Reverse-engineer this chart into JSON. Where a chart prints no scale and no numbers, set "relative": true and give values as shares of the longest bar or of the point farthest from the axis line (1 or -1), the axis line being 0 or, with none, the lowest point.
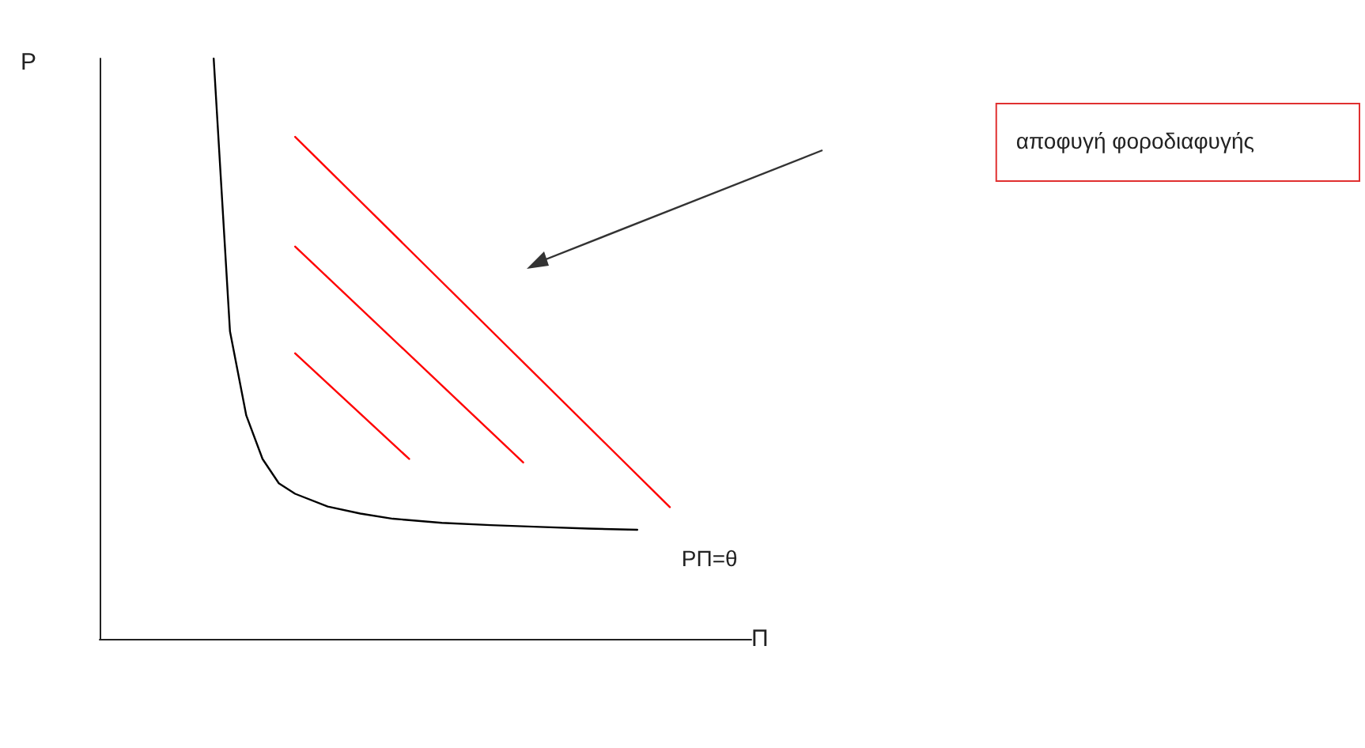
{
  "chart_data": {
    "type": "line",
    "relative": true,
    "xlabel": "Π",
    "ylabel": "P",
    "grid": false,
    "legend": false,
    "marker": "none",
    "line_style": "solid",
    "annotations": [
      "αποφυγή φοροδιαφυγής"
    ],
    "categories": [
      null,
      null,
      null,
      null,
      null,
      null,
      null,
      null,
      null,
      null,
      null,
      null,
      null,
      null,
      null,
      null,
      null,
      null,
      null,
      null,
      null,
      null,
      null,
      null,
      null,
      null,
      null,
      null,
      null,
      null,
      null,
      null,
      null,
      null,
      null,
      null,
      null,
      null,
      null,
      null,
      null
    ],
    "series": [
      {
        "name": "PΠ=θ",
        "color": "#000000",
        "values": [
          null,
          null,
          null,
          null,
          null,
          null,
          null,
          1.0,
          0.53,
          0.385,
          0.31,
          0.268,
          0.25,
          null,
          0.228,
          null,
          0.216,
          null,
          0.207,
          null,
          null,
          0.2,
          null,
          null,
          0.196,
          null,
          null,
          0.193,
          null,
          null,
          0.19,
          null,
          null,
          0.188,
          null,
          null,
          null,
          null,
          null,
          null,
          null
        ]
      },
      {
        "color": "#ff0000",
        "values": [
          null,
          null,
          null,
          null,
          null,
          null,
          null,
          null,
          null,
          null,
          null,
          null,
          0.492,
          null,
          null,
          null,
          null,
          null,
          null,
          0.31,
          null,
          null,
          null,
          null,
          null,
          null,
          null,
          null,
          null,
          null,
          null,
          null,
          null,
          null,
          null,
          null,
          null,
          null,
          null,
          null,
          null
        ]
      },
      {
        "color": "#ff0000",
        "values": [
          null,
          null,
          null,
          null,
          null,
          null,
          null,
          null,
          null,
          null,
          null,
          null,
          0.676,
          null,
          null,
          null,
          null,
          null,
          null,
          null,
          null,
          null,
          null,
          null,
          null,
          null,
          0.304,
          null,
          null,
          null,
          null,
          null,
          null,
          null,
          null,
          null,
          null,
          null,
          null,
          null,
          null
        ]
      },
      {
        "color": "#ff0000",
        "values": [
          null,
          null,
          null,
          null,
          null,
          null,
          null,
          null,
          null,
          null,
          null,
          null,
          0.865,
          null,
          null,
          null,
          null,
          null,
          null,
          null,
          null,
          null,
          null,
          null,
          null,
          null,
          null,
          null,
          null,
          null,
          null,
          null,
          null,
          null,
          null,
          0.227,
          null,
          null,
          null,
          null,
          null
        ]
      }
    ]
  }
}
